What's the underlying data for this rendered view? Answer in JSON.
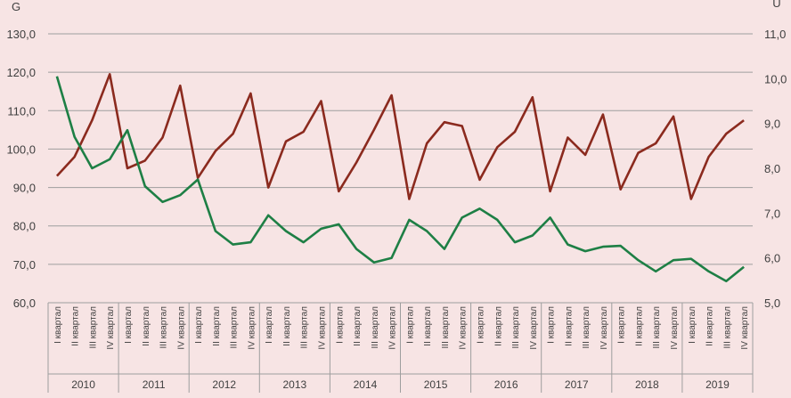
{
  "chart_data": {
    "type": "line",
    "title": "",
    "left_axis": {
      "label": "G",
      "ylim": [
        60,
        130
      ],
      "ticks": [
        "60,0",
        "70,0",
        "80,0",
        "90,0",
        "100,0",
        "110,0",
        "120,0",
        "130,0"
      ]
    },
    "right_axis": {
      "label": "U",
      "ylim": [
        5,
        11
      ],
      "ticks": [
        "5,0",
        "6,0",
        "7,0",
        "8,0",
        "9,0",
        "10,0",
        "11,0"
      ]
    },
    "grid": true,
    "years": [
      "2010",
      "2011",
      "2012",
      "2013",
      "2014",
      "2015",
      "2016",
      "2017",
      "2018",
      "2019"
    ],
    "quarters": [
      "I квартал",
      "II квартал",
      "III квартал",
      "IV квартал"
    ],
    "series": [
      {
        "axis": "left",
        "color": "#8b2a1e",
        "values": [
          93.0,
          98.0,
          107.5,
          119.5,
          95.0,
          97.0,
          103.0,
          116.5,
          92.5,
          99.5,
          104.0,
          114.5,
          90.0,
          102.0,
          104.5,
          112.5,
          89.0,
          96.5,
          105.0,
          114.0,
          87.0,
          101.5,
          107.0,
          106.0,
          92.0,
          100.5,
          104.5,
          113.5,
          89.0,
          103.0,
          98.5,
          109.0,
          89.5,
          99.0,
          101.5,
          108.5,
          87.0,
          98.0,
          104.0,
          107.5
        ]
      },
      {
        "axis": "right",
        "color": "#1e7f45",
        "values": [
          10.05,
          8.7,
          8.0,
          8.2,
          8.85,
          7.6,
          7.25,
          7.4,
          7.75,
          6.6,
          6.3,
          6.35,
          6.95,
          6.6,
          6.35,
          6.65,
          6.75,
          6.2,
          5.9,
          6.0,
          6.85,
          6.6,
          6.2,
          6.9,
          7.1,
          6.85,
          6.35,
          6.5,
          6.9,
          6.3,
          6.15,
          6.25,
          6.27,
          5.95,
          5.7,
          5.95,
          5.98,
          5.7,
          5.48,
          5.8
        ]
      }
    ]
  }
}
